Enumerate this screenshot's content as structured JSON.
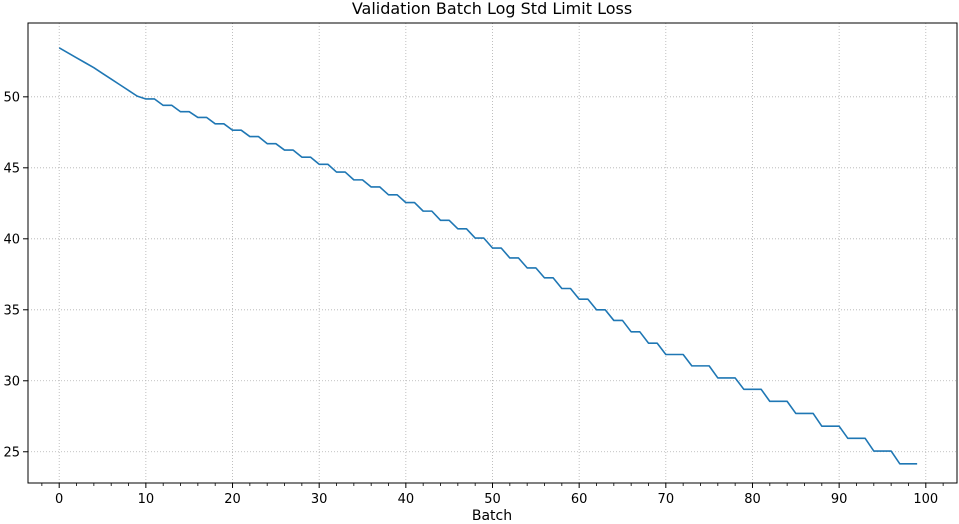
{
  "chart_data": {
    "type": "line",
    "title": "Validation Batch Log Std Limit Loss",
    "xlabel": "Batch",
    "ylabel": "",
    "xlim": [
      -3.6,
      103.6
    ],
    "ylim": [
      22.8,
      55.2
    ],
    "xticks": [
      0,
      10,
      20,
      30,
      40,
      50,
      60,
      70,
      80,
      90,
      100
    ],
    "xtick_labels": [
      "0",
      "10",
      "20",
      "30",
      "40",
      "50",
      "60",
      "70",
      "80",
      "90",
      "100"
    ],
    "yticks": [
      25,
      30,
      35,
      40,
      45,
      50
    ],
    "ytick_labels": [
      "25",
      "30",
      "35",
      "40",
      "45",
      "50"
    ],
    "x_minor_step": 2,
    "grid": true,
    "legend": "none",
    "color": "#1f77b4",
    "series": [
      {
        "name": "",
        "x": [
          0,
          1,
          2,
          3,
          4,
          5,
          6,
          7,
          8,
          9,
          10,
          11,
          12,
          13,
          14,
          15,
          16,
          17,
          18,
          19,
          20,
          21,
          22,
          23,
          24,
          25,
          26,
          27,
          28,
          29,
          30,
          31,
          32,
          33,
          34,
          35,
          36,
          37,
          38,
          39,
          40,
          41,
          42,
          43,
          44,
          45,
          46,
          47,
          48,
          49,
          50,
          51,
          52,
          53,
          54,
          55,
          56,
          57,
          58,
          59,
          60,
          61,
          62,
          63,
          64,
          65,
          66,
          67,
          68,
          69,
          70,
          71,
          72,
          73,
          74,
          75,
          76,
          77,
          78,
          79,
          80,
          81,
          82,
          83,
          84,
          85,
          86,
          87,
          88,
          89,
          90,
          91,
          92,
          93,
          94,
          95,
          96,
          97,
          98,
          99
        ],
        "values": [
          53.45,
          53.1,
          52.75,
          52.4,
          52.05,
          51.65,
          51.25,
          50.85,
          50.45,
          50.05,
          49.85,
          49.85,
          49.4,
          49.4,
          48.95,
          48.95,
          48.55,
          48.55,
          48.1,
          48.1,
          47.65,
          47.65,
          47.2,
          47.2,
          46.7,
          46.7,
          46.25,
          46.25,
          45.75,
          45.75,
          45.25,
          45.25,
          44.7,
          44.7,
          44.15,
          44.15,
          43.65,
          43.65,
          43.1,
          43.1,
          42.55,
          42.55,
          41.95,
          41.95,
          41.3,
          41.3,
          40.7,
          40.7,
          40.05,
          40.05,
          39.35,
          39.35,
          38.65,
          38.65,
          37.95,
          37.95,
          37.25,
          37.25,
          36.5,
          36.5,
          35.75,
          35.75,
          35.0,
          35.0,
          34.25,
          34.25,
          33.45,
          33.45,
          32.65,
          32.65,
          31.85,
          31.85,
          31.85,
          31.05,
          31.05,
          31.05,
          30.2,
          30.2,
          30.2,
          29.4,
          29.4,
          29.4,
          28.55,
          28.55,
          28.55,
          27.7,
          27.7,
          27.7,
          26.8,
          26.8,
          26.8,
          25.95,
          25.95,
          25.95,
          25.05,
          25.05,
          25.05,
          24.15,
          24.15,
          24.15
        ]
      }
    ]
  }
}
